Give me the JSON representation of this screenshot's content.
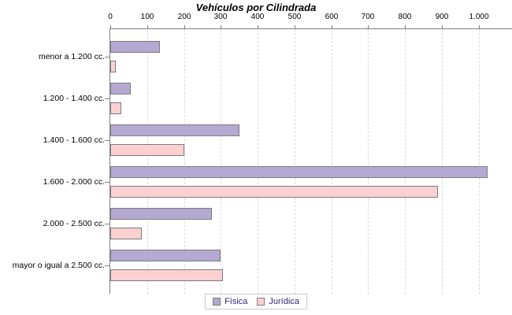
{
  "chart_data": {
    "type": "bar",
    "orientation": "horizontal",
    "title": "Vehículos por Cilindrada",
    "categories": [
      "menor a 1.200 cc.",
      "1.200 - 1.400 cc.",
      "1.400 - 1.600 cc.",
      "1.600 - 2.000 cc.",
      "2.000 - 2.500 cc.",
      "mayor o igual a 2.500 cc."
    ],
    "series": [
      {
        "name": "Física",
        "color": "#b4a9d2",
        "values": [
          135,
          55,
          350,
          1025,
          275,
          300
        ]
      },
      {
        "name": "Jurídica",
        "color": "#fcd0d0",
        "values": [
          15,
          30,
          200,
          890,
          85,
          305
        ]
      }
    ],
    "xlabel": "",
    "ylabel": "",
    "xlim": [
      0,
      1090
    ],
    "x_ticks": [
      0,
      100,
      200,
      300,
      400,
      500,
      600,
      700,
      800,
      900,
      1000
    ],
    "x_tick_labels": [
      "0",
      "100",
      "200",
      "300",
      "400",
      "500",
      "600",
      "700",
      "800",
      "900",
      "1.000"
    ],
    "grid": "vertical-dashed",
    "legend_position": "bottom-center"
  },
  "colors": {
    "series_fisica": "#b4a9d2",
    "series_juridica": "#fcd0d0",
    "bar_border": "#7c7c7c",
    "axis_line": "#808080",
    "gridline": "#dadada",
    "legend_text": "#37247d",
    "legend_border": "#c8c8c8",
    "title_text": "#000000"
  }
}
